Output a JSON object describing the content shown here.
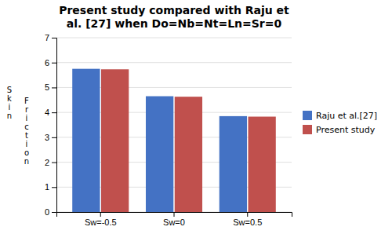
{
  "chart_data": {
    "type": "bar",
    "title": "Present study compared with Raju et\nal. [27] when Do=Nb=Nt=Ln=Sr=0",
    "ylabel": [
      "S\nk\ni\nn",
      "F\nr\ni\nc\nt\ni\no\nn"
    ],
    "categories": [
      "Sw=-0.5",
      "Sw=0",
      "Sw=0.5"
    ],
    "series": [
      {
        "name": "Raju et al.[27]",
        "color": "#4472C4",
        "values": [
          5.75,
          4.65,
          3.85
        ]
      },
      {
        "name": "Present study",
        "color": "#C0504D",
        "values": [
          5.73,
          4.63,
          3.83
        ]
      }
    ],
    "ylim": [
      0,
      7
    ],
    "yticks": [
      0,
      1,
      2,
      3,
      4,
      5,
      6,
      7
    ],
    "grid": true,
    "legend": "right"
  }
}
